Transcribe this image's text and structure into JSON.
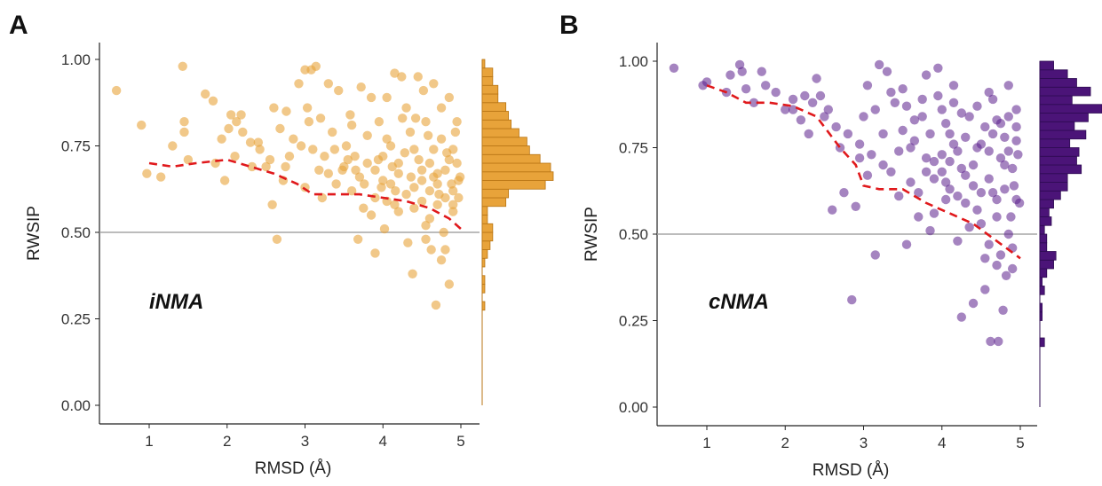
{
  "chart_data": [
    {
      "type": "scatter",
      "panel_label": "A",
      "annotation": "iNMA",
      "xlabel": "RMSD (Å)",
      "ylabel": "RWSIP",
      "xlim": [
        0.5,
        5.25
      ],
      "ylim": [
        0.0,
        1.05
      ],
      "xticks": [
        "1",
        "2",
        "3",
        "4",
        "5"
      ],
      "yticks": [
        "0.00",
        "0.25",
        "0.50",
        "0.75",
        "1.00"
      ],
      "reference_line_y": 0.5,
      "grid": false,
      "point_color": "#E8A33A",
      "trend_color": "#E0191C",
      "marginal_histogram": "right",
      "trend_line": {
        "x": [
          1.0,
          1.3,
          1.6,
          2.0,
          2.3,
          2.6,
          2.9,
          3.1,
          3.4,
          3.7,
          4.0,
          4.3,
          4.6,
          4.85,
          5.0
        ],
        "y": [
          0.7,
          0.69,
          0.7,
          0.71,
          0.69,
          0.67,
          0.64,
          0.61,
          0.61,
          0.61,
          0.6,
          0.59,
          0.57,
          0.54,
          0.51
        ]
      },
      "histogram": {
        "bin_edges": [
          0.275,
          0.3,
          0.325,
          0.35,
          0.375,
          0.4,
          0.425,
          0.45,
          0.475,
          0.5,
          0.525,
          0.55,
          0.575,
          0.6,
          0.625,
          0.65,
          0.675,
          0.7,
          0.725,
          0.75,
          0.775,
          0.8,
          0.825,
          0.85,
          0.875,
          0.9,
          0.925,
          0.95,
          0.975,
          1.0
        ],
        "counts": [
          1,
          0,
          1,
          1,
          0,
          1,
          2,
          3,
          4,
          4,
          2,
          2,
          9,
          10,
          24,
          27,
          26,
          22,
          18,
          17,
          14,
          11,
          10,
          9,
          6,
          6,
          4,
          4,
          1
        ]
      },
      "points": [
        [
          0.58,
          0.91
        ],
        [
          0.9,
          0.81
        ],
        [
          0.97,
          0.67
        ],
        [
          1.15,
          0.66
        ],
        [
          1.3,
          0.75
        ],
        [
          1.43,
          0.98
        ],
        [
          1.45,
          0.82
        ],
        [
          1.45,
          0.79
        ],
        [
          1.5,
          0.71
        ],
        [
          1.72,
          0.9
        ],
        [
          1.82,
          0.88
        ],
        [
          1.85,
          0.7
        ],
        [
          1.93,
          0.77
        ],
        [
          2.02,
          0.8
        ],
        [
          2.05,
          0.84
        ],
        [
          2.12,
          0.82
        ],
        [
          2.18,
          0.84
        ],
        [
          2.2,
          0.79
        ],
        [
          2.32,
          0.69
        ],
        [
          2.4,
          0.76
        ],
        [
          2.42,
          0.74
        ],
        [
          2.5,
          0.69
        ],
        [
          2.55,
          0.71
        ],
        [
          2.58,
          0.58
        ],
        [
          2.6,
          0.86
        ],
        [
          2.64,
          0.48
        ],
        [
          2.68,
          0.8
        ],
        [
          2.72,
          0.65
        ],
        [
          2.76,
          0.85
        ],
        [
          2.8,
          0.72
        ],
        [
          2.85,
          0.77
        ],
        [
          2.92,
          0.93
        ],
        [
          3.0,
          0.97
        ],
        [
          3.03,
          0.86
        ],
        [
          3.05,
          0.82
        ],
        [
          3.08,
          0.97
        ],
        [
          3.1,
          0.74
        ],
        [
          3.14,
          0.98
        ],
        [
          3.18,
          0.68
        ],
        [
          3.22,
          0.6
        ],
        [
          3.25,
          0.72
        ],
        [
          3.3,
          0.93
        ],
        [
          3.35,
          0.79
        ],
        [
          3.38,
          0.74
        ],
        [
          3.43,
          0.91
        ],
        [
          3.48,
          0.68
        ],
        [
          3.53,
          0.75
        ],
        [
          3.58,
          0.84
        ],
        [
          3.64,
          0.72
        ],
        [
          3.68,
          0.48
        ],
        [
          3.72,
          0.92
        ],
        [
          3.76,
          0.64
        ],
        [
          3.8,
          0.78
        ],
        [
          3.85,
          0.55
        ],
        [
          3.9,
          0.44
        ],
        [
          3.94,
          0.71
        ],
        [
          3.98,
          0.63
        ],
        [
          4.02,
          0.51
        ],
        [
          4.05,
          0.89
        ],
        [
          4.1,
          0.75
        ],
        [
          4.12,
          0.69
        ],
        [
          4.16,
          0.62
        ],
        [
          4.2,
          0.56
        ],
        [
          4.24,
          0.95
        ],
        [
          4.28,
          0.73
        ],
        [
          4.32,
          0.47
        ],
        [
          4.36,
          0.66
        ],
        [
          4.38,
          0.38
        ],
        [
          4.42,
          0.83
        ],
        [
          4.46,
          0.71
        ],
        [
          4.5,
          0.59
        ],
        [
          4.52,
          0.91
        ],
        [
          4.55,
          0.52
        ],
        [
          4.58,
          0.78
        ],
        [
          4.62,
          0.45
        ],
        [
          4.65,
          0.66
        ],
        [
          4.68,
          0.29
        ],
        [
          4.72,
          0.61
        ],
        [
          4.75,
          0.86
        ],
        [
          4.78,
          0.5
        ],
        [
          4.82,
          0.73
        ],
        [
          4.85,
          0.35
        ],
        [
          4.88,
          0.64
        ],
        [
          4.9,
          0.56
        ],
        [
          4.93,
          0.79
        ],
        [
          4.95,
          0.7
        ],
        [
          4.97,
          0.6
        ],
        [
          4.99,
          0.66
        ],
        [
          3.6,
          0.62
        ],
        [
          3.7,
          0.66
        ],
        [
          3.9,
          0.68
        ],
        [
          4.0,
          0.65
        ],
        [
          4.1,
          0.64
        ],
        [
          4.3,
          0.61
        ],
        [
          4.4,
          0.63
        ],
        [
          4.6,
          0.62
        ],
        [
          4.7,
          0.67
        ],
        [
          4.8,
          0.6
        ],
        [
          3.5,
          0.69
        ],
        [
          4.0,
          0.72
        ],
        [
          4.4,
          0.74
        ],
        [
          4.6,
          0.7
        ],
        [
          4.8,
          0.68
        ],
        [
          4.2,
          0.67
        ],
        [
          3.8,
          0.7
        ],
        [
          4.5,
          0.65
        ],
        [
          4.7,
          0.58
        ],
        [
          4.9,
          0.62
        ],
        [
          4.95,
          0.82
        ],
        [
          4.3,
          0.86
        ],
        [
          3.95,
          0.82
        ],
        [
          3.4,
          0.64
        ],
        [
          3.2,
          0.83
        ],
        [
          2.95,
          0.75
        ],
        [
          2.3,
          0.76
        ],
        [
          2.1,
          0.72
        ],
        [
          1.97,
          0.65
        ],
        [
          4.85,
          0.89
        ],
        [
          4.65,
          0.93
        ],
        [
          4.45,
          0.95
        ],
        [
          4.15,
          0.96
        ],
        [
          3.85,
          0.89
        ],
        [
          3.6,
          0.81
        ],
        [
          4.25,
          0.83
        ],
        [
          4.55,
          0.82
        ],
        [
          4.75,
          0.77
        ],
        [
          4.9,
          0.74
        ],
        [
          4.6,
          0.54
        ],
        [
          4.4,
          0.57
        ],
        [
          4.8,
          0.45
        ],
        [
          4.75,
          0.42
        ],
        [
          4.55,
          0.48
        ],
        [
          4.15,
          0.58
        ],
        [
          3.9,
          0.6
        ],
        [
          3.75,
          0.57
        ],
        [
          4.05,
          0.77
        ],
        [
          4.35,
          0.79
        ],
        [
          4.65,
          0.74
        ],
        [
          4.85,
          0.71
        ],
        [
          4.97,
          0.65
        ],
        [
          4.5,
          0.68
        ],
        [
          4.2,
          0.7
        ],
        [
          3.65,
          0.68
        ],
        [
          3.3,
          0.67
        ],
        [
          3.0,
          0.63
        ],
        [
          2.75,
          0.69
        ],
        [
          3.55,
          0.71
        ],
        [
          4.05,
          0.59
        ],
        [
          4.7,
          0.64
        ],
        [
          4.9,
          0.58
        ]
      ]
    },
    {
      "type": "scatter",
      "panel_label": "B",
      "annotation": "cNMA",
      "xlabel": "RMSD (Å)",
      "ylabel": "RWSIP",
      "xlim": [
        0.5,
        5.25
      ],
      "ylim": [
        0.0,
        1.05
      ],
      "xticks": [
        "1",
        "2",
        "3",
        "4",
        "5"
      ],
      "yticks": [
        "0.00",
        "0.25",
        "0.50",
        "0.75",
        "1.00"
      ],
      "reference_line_y": 0.5,
      "grid": false,
      "point_color": "#5B1F8C",
      "trend_color": "#E0191C",
      "marginal_histogram": "right",
      "trend_line": {
        "x": [
          1.0,
          1.25,
          1.5,
          1.8,
          2.1,
          2.4,
          2.7,
          2.9,
          3.0,
          3.2,
          3.5,
          3.8,
          4.1,
          4.4,
          4.7,
          5.0
        ],
        "y": [
          0.93,
          0.91,
          0.88,
          0.88,
          0.87,
          0.84,
          0.75,
          0.7,
          0.64,
          0.63,
          0.63,
          0.59,
          0.56,
          0.53,
          0.48,
          0.43
        ]
      },
      "histogram": {
        "bin_edges": [
          0.175,
          0.2,
          0.225,
          0.25,
          0.275,
          0.3,
          0.325,
          0.35,
          0.375,
          0.4,
          0.425,
          0.45,
          0.475,
          0.5,
          0.525,
          0.55,
          0.575,
          0.6,
          0.625,
          0.65,
          0.675,
          0.7,
          0.725,
          0.75,
          0.775,
          0.8,
          0.825,
          0.85,
          0.875,
          0.9,
          0.925,
          0.95,
          0.975,
          1.0
        ],
        "counts": [
          2,
          0,
          0,
          1,
          1,
          0,
          2,
          1,
          3,
          6,
          7,
          3,
          3,
          2,
          5,
          4,
          6,
          9,
          12,
          12,
          18,
          16,
          17,
          13,
          20,
          15,
          21,
          27,
          14,
          22,
          16,
          12,
          6
        ]
      },
      "points": [
        [
          0.58,
          0.98
        ],
        [
          0.95,
          0.93
        ],
        [
          1.0,
          0.94
        ],
        [
          1.3,
          0.96
        ],
        [
          1.42,
          0.99
        ],
        [
          1.45,
          0.97
        ],
        [
          1.5,
          0.92
        ],
        [
          1.7,
          0.97
        ],
        [
          1.75,
          0.93
        ],
        [
          1.88,
          0.91
        ],
        [
          2.0,
          0.86
        ],
        [
          2.1,
          0.89
        ],
        [
          2.2,
          0.83
        ],
        [
          2.3,
          0.79
        ],
        [
          2.4,
          0.95
        ],
        [
          2.45,
          0.9
        ],
        [
          2.55,
          0.86
        ],
        [
          2.6,
          0.57
        ],
        [
          2.7,
          0.75
        ],
        [
          2.75,
          0.62
        ],
        [
          2.85,
          0.31
        ],
        [
          2.9,
          0.58
        ],
        [
          3.0,
          0.84
        ],
        [
          3.05,
          0.93
        ],
        [
          3.1,
          0.73
        ],
        [
          3.15,
          0.44
        ],
        [
          3.2,
          0.99
        ],
        [
          3.25,
          0.79
        ],
        [
          3.3,
          0.97
        ],
        [
          3.35,
          0.68
        ],
        [
          3.4,
          0.88
        ],
        [
          3.45,
          0.61
        ],
        [
          3.5,
          0.92
        ],
        [
          3.55,
          0.47
        ],
        [
          3.6,
          0.75
        ],
        [
          3.65,
          0.83
        ],
        [
          3.7,
          0.55
        ],
        [
          3.75,
          0.89
        ],
        [
          3.8,
          0.96
        ],
        [
          3.85,
          0.51
        ],
        [
          3.9,
          0.71
        ],
        [
          3.95,
          0.98
        ],
        [
          4.0,
          0.86
        ],
        [
          4.05,
          0.6
        ],
        [
          4.1,
          0.79
        ],
        [
          4.15,
          0.93
        ],
        [
          4.2,
          0.48
        ],
        [
          4.25,
          0.26
        ],
        [
          4.3,
          0.67
        ],
        [
          4.35,
          0.84
        ],
        [
          4.4,
          0.3
        ],
        [
          4.45,
          0.57
        ],
        [
          4.5,
          0.76
        ],
        [
          4.55,
          0.34
        ],
        [
          4.6,
          0.91
        ],
        [
          4.62,
          0.19
        ],
        [
          4.65,
          0.62
        ],
        [
          4.7,
          0.41
        ],
        [
          4.72,
          0.19
        ],
        [
          4.75,
          0.82
        ],
        [
          4.78,
          0.28
        ],
        [
          4.8,
          0.7
        ],
        [
          4.82,
          0.38
        ],
        [
          4.85,
          0.93
        ],
        [
          4.88,
          0.55
        ],
        [
          4.9,
          0.4
        ],
        [
          4.92,
          0.64
        ],
        [
          4.95,
          0.86
        ],
        [
          4.97,
          0.73
        ],
        [
          4.99,
          0.59
        ],
        [
          3.6,
          0.65
        ],
        [
          3.8,
          0.72
        ],
        [
          4.0,
          0.68
        ],
        [
          4.2,
          0.74
        ],
        [
          4.4,
          0.7
        ],
        [
          4.6,
          0.66
        ],
        [
          4.8,
          0.78
        ],
        [
          4.9,
          0.69
        ],
        [
          4.1,
          0.63
        ],
        [
          4.3,
          0.59
        ],
        [
          4.5,
          0.62
        ],
        [
          4.7,
          0.55
        ],
        [
          4.85,
          0.5
        ],
        [
          4.6,
          0.47
        ],
        [
          4.35,
          0.52
        ],
        [
          3.9,
          0.56
        ],
        [
          3.7,
          0.62
        ],
        [
          4.95,
          0.77
        ],
        [
          4.75,
          0.72
        ],
        [
          4.55,
          0.81
        ],
        [
          4.25,
          0.85
        ],
        [
          4.05,
          0.82
        ],
        [
          3.85,
          0.79
        ],
        [
          3.65,
          0.77
        ],
        [
          3.45,
          0.74
        ],
        [
          3.25,
          0.7
        ],
        [
          3.05,
          0.67
        ],
        [
          2.95,
          0.72
        ],
        [
          3.15,
          0.86
        ],
        [
          3.35,
          0.91
        ],
        [
          3.55,
          0.87
        ],
        [
          3.75,
          0.84
        ],
        [
          3.95,
          0.9
        ],
        [
          4.15,
          0.88
        ],
        [
          4.45,
          0.87
        ],
        [
          4.65,
          0.89
        ],
        [
          4.85,
          0.84
        ],
        [
          4.95,
          0.81
        ],
        [
          4.7,
          0.6
        ],
        [
          4.5,
          0.53
        ],
        [
          4.3,
          0.78
        ],
        [
          4.1,
          0.71
        ],
        [
          3.9,
          0.66
        ],
        [
          4.6,
          0.74
        ],
        [
          4.8,
          0.63
        ],
        [
          4.4,
          0.64
        ],
        [
          4.2,
          0.61
        ],
        [
          4.0,
          0.73
        ],
        [
          3.8,
          0.68
        ],
        [
          4.9,
          0.46
        ],
        [
          4.75,
          0.44
        ],
        [
          4.55,
          0.43
        ],
        [
          2.1,
          0.86
        ],
        [
          2.25,
          0.9
        ],
        [
          2.5,
          0.84
        ],
        [
          2.65,
          0.81
        ],
        [
          2.8,
          0.79
        ],
        [
          2.95,
          0.76
        ],
        [
          1.25,
          0.91
        ],
        [
          1.6,
          0.88
        ],
        [
          2.35,
          0.88
        ],
        [
          3.5,
          0.8
        ],
        [
          4.95,
          0.6
        ],
        [
          4.65,
          0.79
        ],
        [
          4.45,
          0.75
        ],
        [
          4.25,
          0.69
        ],
        [
          4.05,
          0.65
        ],
        [
          4.85,
          0.74
        ],
        [
          4.7,
          0.83
        ],
        [
          4.15,
          0.76
        ]
      ]
    }
  ]
}
